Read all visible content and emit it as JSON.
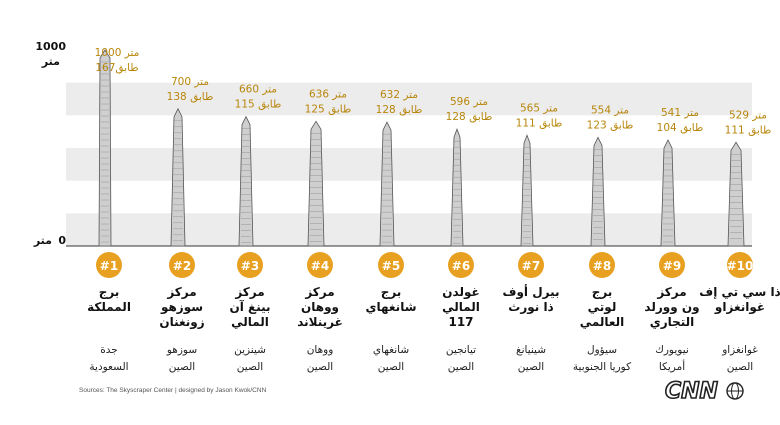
{
  "chart_data": {
    "type": "bar",
    "y_axis": {
      "top_label": "1000",
      "top_unit": "متر",
      "bottom_label": "0",
      "bottom_unit": "متر",
      "ylim": [
        0,
        1000
      ]
    },
    "height_unit": "متر",
    "floors_unit": "طابق",
    "buildings": [
      {
        "rank": "#1",
        "height": 1000,
        "floors": 167,
        "height_text": "1000 متر",
        "floors_text": "167طابق",
        "name_lines": [
          "برج",
          "المملكة"
        ],
        "city": "جدة",
        "country": "السعودية"
      },
      {
        "rank": "#2",
        "height": 700,
        "floors": 138,
        "height_text": "700 متر",
        "floors_text": "138 طابق",
        "name_lines": [
          "مركز",
          "سوزهو",
          "زونغنان"
        ],
        "city": "سوزهو",
        "country": "الصين"
      },
      {
        "rank": "#3",
        "height": 660,
        "floors": 115,
        "height_text": "660 متر",
        "floors_text": "115 طابق",
        "name_lines": [
          "مركز",
          "بينغ آن",
          "المالي"
        ],
        "city": "شينزين",
        "country": "الصين"
      },
      {
        "rank": "#4",
        "height": 636,
        "floors": 125,
        "height_text": "636 متر",
        "floors_text": "125 طابق",
        "name_lines": [
          "مركز",
          "ووهان",
          "غرينلاند"
        ],
        "city": "ووهان",
        "country": "الصين"
      },
      {
        "rank": "#5",
        "height": 632,
        "floors": 128,
        "height_text": "632 متر",
        "floors_text": "128 طابق",
        "name_lines": [
          "برج",
          "شانغهاي"
        ],
        "city": "شانغهاي",
        "country": "الصين"
      },
      {
        "rank": "#6",
        "height": 596,
        "floors": 128,
        "height_text": "596 متر",
        "floors_text": "128 طابق",
        "name_lines": [
          "غولدن",
          "المالي",
          "117"
        ],
        "city": "تيانجين",
        "country": "الصين"
      },
      {
        "rank": "#7",
        "height": 565,
        "floors": 111,
        "height_text": "565 متر",
        "floors_text": "111 طابق",
        "name_lines": [
          "بيرل أوف",
          "ذا نورث"
        ],
        "city": "شينيانغ",
        "country": "الصين"
      },
      {
        "rank": "#8",
        "height": 554,
        "floors": 123,
        "height_text": "554 متر",
        "floors_text": "123 طابق",
        "name_lines": [
          "برج",
          "لوتي",
          "العالمي"
        ],
        "city": "سيؤول",
        "country": "كوريا الجنوبية"
      },
      {
        "rank": "#9",
        "height": 541,
        "floors": 104,
        "height_text": "541 متر",
        "floors_text": "104 طابق",
        "name_lines": [
          "مركز",
          "ون وورلد",
          "التجاري"
        ],
        "city": "نيويورك",
        "country": "أمريكا"
      },
      {
        "rank": "#10",
        "height": 529,
        "floors": 111,
        "height_text": "529 متر",
        "floors_text": "111 طابق",
        "name_lines": [
          "ذا سي تي إف",
          "غوانغزاو"
        ],
        "city": "غوانغزاو",
        "country": "الصين"
      }
    ],
    "grid": "alternating horizontal bands",
    "colors": {
      "accent": "#e8a020",
      "band": "#ececec",
      "label": "#b8860b",
      "text": "#111111",
      "building": "#cfcfcf"
    }
  },
  "footer": {
    "source": "Sources: The Skyscraper Center  |  designed by Jason Kwok/CNN"
  },
  "logo": {
    "text": "CNN"
  }
}
